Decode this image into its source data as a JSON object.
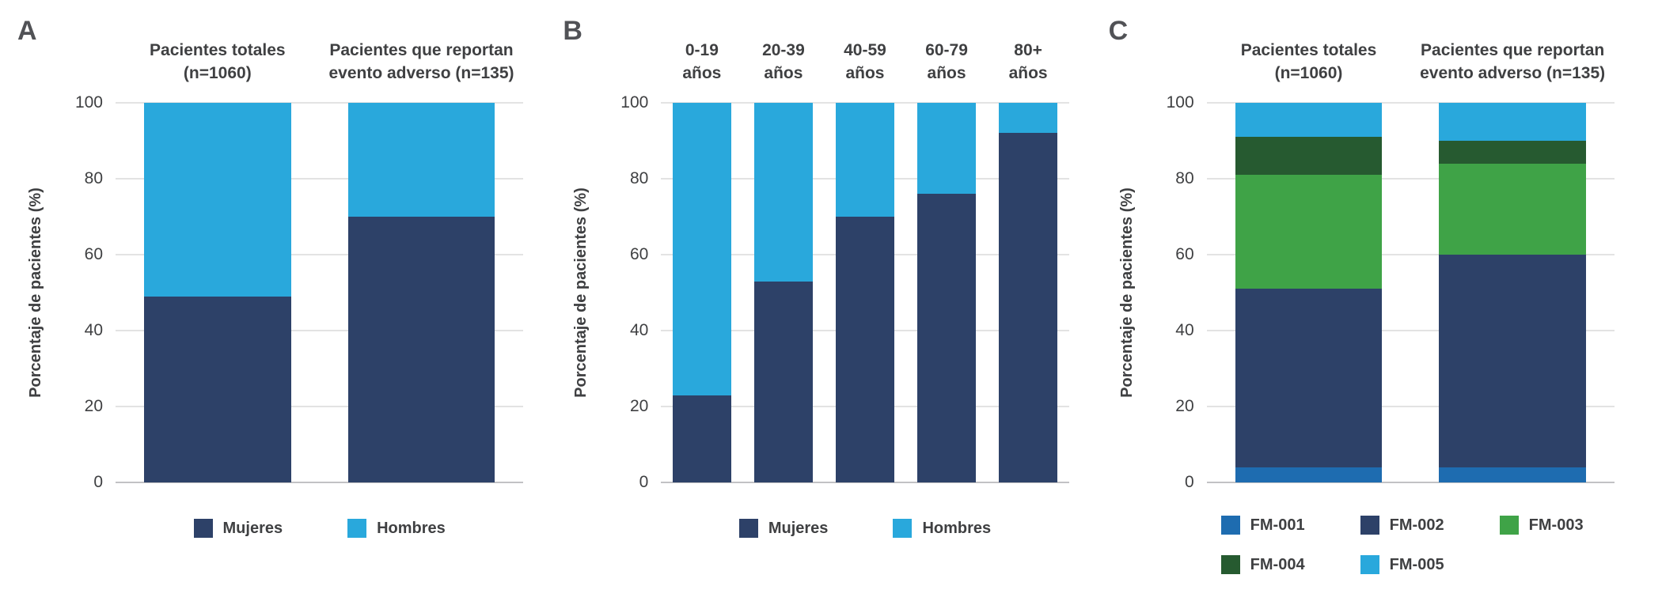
{
  "figure": {
    "background": "#ffffff",
    "text_color": "#3f4042"
  },
  "chart_data": [
    {
      "id": "A",
      "type": "bar",
      "stacked": true,
      "unit": "%",
      "ylabel": "Porcentaje de pacientes (%)",
      "ylim": [
        0,
        100
      ],
      "yticks": [
        0,
        20,
        40,
        60,
        80,
        100
      ],
      "grid": true,
      "legend_position": "bottom",
      "categories": [
        "Pacientes totales (n=1060)",
        "Pacientes que reportan evento adverso (n=135)"
      ],
      "categories_lines": [
        [
          "Pacientes totales",
          "(n=1060)"
        ],
        [
          "Pacientes que reportan",
          "evento adverso (n=135)"
        ]
      ],
      "series": [
        {
          "name": "Mujeres",
          "color": "#2d4168",
          "values": [
            49,
            70
          ]
        },
        {
          "name": "Hombres",
          "color": "#29a8dc",
          "values": [
            51,
            30
          ]
        }
      ]
    },
    {
      "id": "B",
      "type": "bar",
      "stacked": true,
      "unit": "%",
      "ylabel": "Porcentaje de pacientes (%)",
      "ylim": [
        0,
        100
      ],
      "yticks": [
        0,
        20,
        40,
        60,
        80,
        100
      ],
      "grid": true,
      "legend_position": "bottom",
      "categories": [
        "0-19 años",
        "20-39 años",
        "40-59 años",
        "60-79 años",
        "80+ años"
      ],
      "categories_lines": [
        [
          "0-19",
          "años"
        ],
        [
          "20-39",
          "años"
        ],
        [
          "40-59",
          "años"
        ],
        [
          "60-79",
          "años"
        ],
        [
          "80+",
          "años"
        ]
      ],
      "series": [
        {
          "name": "Mujeres",
          "color": "#2d4168",
          "values": [
            23,
            53,
            70,
            76,
            92
          ]
        },
        {
          "name": "Hombres",
          "color": "#29a8dc",
          "values": [
            77,
            47,
            30,
            24,
            8
          ]
        }
      ]
    },
    {
      "id": "C",
      "type": "bar",
      "stacked": true,
      "unit": "%",
      "ylabel": "Porcentaje de pacientes (%)",
      "ylim": [
        0,
        100
      ],
      "yticks": [
        0,
        20,
        40,
        60,
        80,
        100
      ],
      "grid": true,
      "legend_position": "bottom",
      "categories": [
        "Pacientes totales (n=1060)",
        "Pacientes que reportan evento adverso (n=135)"
      ],
      "categories_lines": [
        [
          "Pacientes totales",
          "(n=1060)"
        ],
        [
          "Pacientes que reportan",
          "evento adverso (n=135)"
        ]
      ],
      "series": [
        {
          "name": "FM-001",
          "color": "#1e6cb0",
          "values": [
            4,
            4
          ]
        },
        {
          "name": "FM-002",
          "color": "#2d4168",
          "values": [
            47,
            56
          ]
        },
        {
          "name": "FM-003",
          "color": "#3fa347",
          "values": [
            30,
            24
          ]
        },
        {
          "name": "FM-004",
          "color": "#265a30",
          "values": [
            10,
            6
          ]
        },
        {
          "name": "FM-005",
          "color": "#29a8dc",
          "values": [
            9,
            10
          ]
        }
      ]
    }
  ]
}
